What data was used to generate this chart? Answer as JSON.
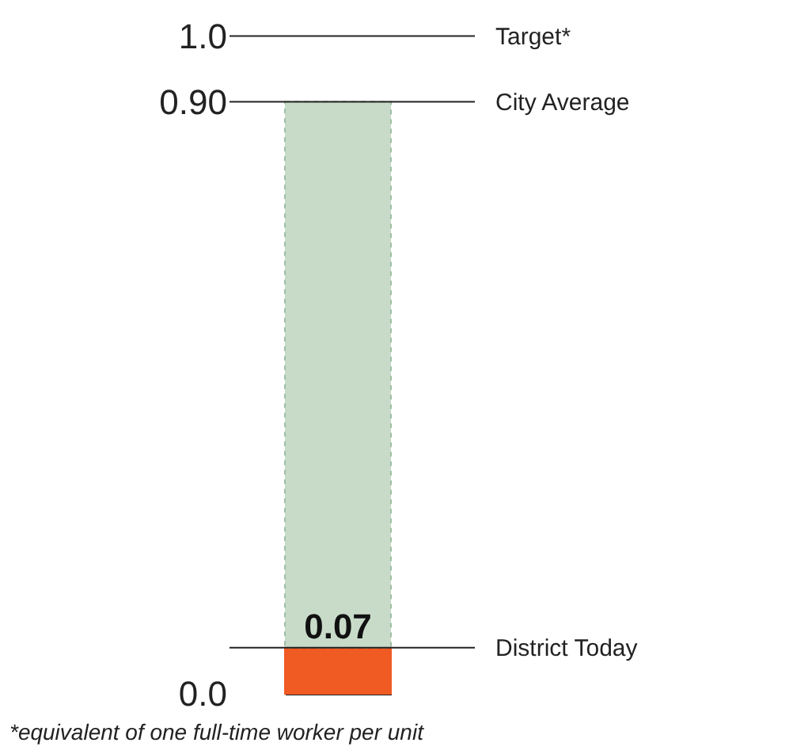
{
  "chart_data": {
    "type": "bar",
    "stacked": true,
    "categories": [
      null
    ],
    "series": [
      {
        "color": "#f05a23",
        "values": [
          0.07
        ],
        "value_labels": [
          "0.07"
        ]
      },
      {
        "color": "#c8dbc9",
        "values": [
          0.83
        ]
      }
    ],
    "ylim": [
      0,
      1.05
    ],
    "yticks": [
      {
        "value": 0,
        "label": "0.0"
      },
      {
        "value": 0.9,
        "label": "0.90"
      },
      {
        "value": 1,
        "label": "1.0"
      }
    ],
    "ref_lines": [
      {
        "axis": "y",
        "value": 1,
        "label": "Target*"
      },
      {
        "axis": "y",
        "value": 0.9,
        "label": "City Average"
      },
      {
        "axis": "y",
        "value": 0.07,
        "label": "District Today"
      }
    ],
    "grid": false,
    "annotations": [
      "*equivalent of one full-time worker per unit"
    ]
  }
}
